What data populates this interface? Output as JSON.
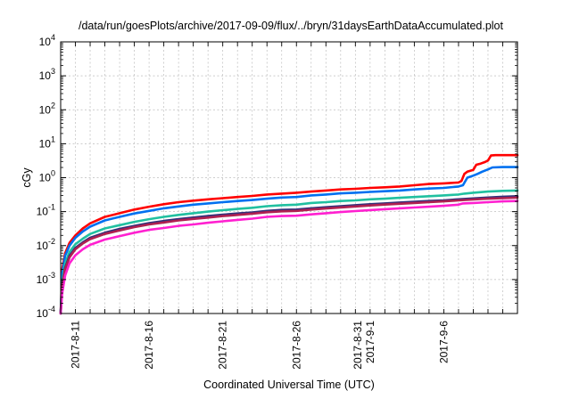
{
  "chart_data": {
    "type": "line",
    "title": "/data/run/goesPlots/archive/2017-09-09/flux/../bryn/31daysEarthDataAccumulated.plot",
    "xlabel": "Coordinated Universal Time (UTC)",
    "ylabel": "cGy",
    "yscale": "log",
    "ylim": [
      0.0001,
      10000
    ],
    "xlim": [
      0,
      31
    ],
    "grid": true,
    "legend": "none",
    "y_ticks": [
      {
        "value": 0.0001,
        "base": "10",
        "exp": "-4"
      },
      {
        "value": 0.001,
        "base": "10",
        "exp": "-3"
      },
      {
        "value": 0.01,
        "base": "10",
        "exp": "-2"
      },
      {
        "value": 0.1,
        "base": "10",
        "exp": "-1"
      },
      {
        "value": 1,
        "base": "10",
        "exp": "0"
      },
      {
        "value": 10,
        "base": "10",
        "exp": "1"
      },
      {
        "value": 100,
        "base": "10",
        "exp": "2"
      },
      {
        "value": 1000,
        "base": "10",
        "exp": "3"
      },
      {
        "value": 10000,
        "base": "10",
        "exp": "4"
      }
    ],
    "x_ticks": [
      {
        "x": 1,
        "lines": [
          "2017-8-11"
        ]
      },
      {
        "x": 6,
        "lines": [
          "2017-8-16"
        ]
      },
      {
        "x": 11,
        "lines": [
          "2017-8-21"
        ]
      },
      {
        "x": 16,
        "lines": [
          "2017-8-26"
        ]
      },
      {
        "x": 21,
        "lines": [
          "2017-8-31",
          "2017-9-1"
        ]
      },
      {
        "x": 26,
        "lines": [
          "2017-9-6"
        ]
      }
    ],
    "series": [
      {
        "color": "#ff0000",
        "points": [
          [
            0,
            0.0001
          ],
          [
            0.1,
            0.002
          ],
          [
            0.3,
            0.006
          ],
          [
            0.6,
            0.012
          ],
          [
            1,
            0.02
          ],
          [
            1.5,
            0.032
          ],
          [
            2,
            0.045
          ],
          [
            3,
            0.07
          ],
          [
            4,
            0.09
          ],
          [
            5,
            0.115
          ],
          [
            6,
            0.14
          ],
          [
            7,
            0.165
          ],
          [
            8,
            0.19
          ],
          [
            9,
            0.21
          ],
          [
            10,
            0.23
          ],
          [
            11,
            0.25
          ],
          [
            12,
            0.27
          ],
          [
            13,
            0.29
          ],
          [
            14,
            0.32
          ],
          [
            15,
            0.34
          ],
          [
            15.5,
            0.35
          ],
          [
            16,
            0.36
          ],
          [
            17,
            0.39
          ],
          [
            18,
            0.42
          ],
          [
            19,
            0.45
          ],
          [
            20,
            0.47
          ],
          [
            21,
            0.5
          ],
          [
            22,
            0.52
          ],
          [
            23,
            0.55
          ],
          [
            24,
            0.6
          ],
          [
            25,
            0.65
          ],
          [
            26,
            0.68
          ],
          [
            27,
            0.72
          ],
          [
            27.2,
            0.8
          ],
          [
            27.4,
            1.3
          ],
          [
            27.6,
            1.5
          ],
          [
            28,
            1.7
          ],
          [
            28.2,
            2.4
          ],
          [
            28.5,
            2.6
          ],
          [
            28.8,
            2.9
          ],
          [
            29,
            3.2
          ],
          [
            29.2,
            4.5
          ],
          [
            29.5,
            4.6
          ],
          [
            30,
            4.6
          ],
          [
            31,
            4.6
          ]
        ]
      },
      {
        "color": "#0070f0",
        "points": [
          [
            0,
            0.0001
          ],
          [
            0.1,
            0.0015
          ],
          [
            0.3,
            0.005
          ],
          [
            0.6,
            0.01
          ],
          [
            1,
            0.017
          ],
          [
            1.5,
            0.026
          ],
          [
            2,
            0.036
          ],
          [
            3,
            0.055
          ],
          [
            4,
            0.07
          ],
          [
            5,
            0.088
          ],
          [
            6,
            0.105
          ],
          [
            7,
            0.125
          ],
          [
            8,
            0.142
          ],
          [
            9,
            0.16
          ],
          [
            10,
            0.175
          ],
          [
            11,
            0.19
          ],
          [
            12,
            0.205
          ],
          [
            13,
            0.22
          ],
          [
            14,
            0.24
          ],
          [
            15,
            0.26
          ],
          [
            15.5,
            0.265
          ],
          [
            16,
            0.27
          ],
          [
            17,
            0.3
          ],
          [
            18,
            0.32
          ],
          [
            19,
            0.345
          ],
          [
            20,
            0.36
          ],
          [
            21,
            0.38
          ],
          [
            22,
            0.4
          ],
          [
            23,
            0.42
          ],
          [
            24,
            0.45
          ],
          [
            25,
            0.48
          ],
          [
            26,
            0.5
          ],
          [
            27,
            0.55
          ],
          [
            27.3,
            0.6
          ],
          [
            27.6,
            1.0
          ],
          [
            28,
            1.15
          ],
          [
            28.3,
            1.3
          ],
          [
            28.6,
            1.5
          ],
          [
            29,
            1.75
          ],
          [
            29.3,
            2.0
          ],
          [
            30,
            2.05
          ],
          [
            31,
            2.05
          ]
        ]
      },
      {
        "color": "#20c0a0",
        "points": [
          [
            0,
            0.0001
          ],
          [
            0.1,
            0.0009
          ],
          [
            0.3,
            0.003
          ],
          [
            0.6,
            0.0065
          ],
          [
            1,
            0.011
          ],
          [
            1.5,
            0.016
          ],
          [
            2,
            0.022
          ],
          [
            3,
            0.032
          ],
          [
            4,
            0.04
          ],
          [
            5,
            0.05
          ],
          [
            6,
            0.06
          ],
          [
            7,
            0.07
          ],
          [
            8,
            0.08
          ],
          [
            9,
            0.09
          ],
          [
            10,
            0.1
          ],
          [
            11,
            0.11
          ],
          [
            12,
            0.12
          ],
          [
            13,
            0.13
          ],
          [
            14,
            0.145
          ],
          [
            15,
            0.155
          ],
          [
            16,
            0.16
          ],
          [
            17,
            0.18
          ],
          [
            18,
            0.19
          ],
          [
            19,
            0.205
          ],
          [
            20,
            0.215
          ],
          [
            21,
            0.23
          ],
          [
            22,
            0.24
          ],
          [
            23,
            0.255
          ],
          [
            24,
            0.27
          ],
          [
            25,
            0.285
          ],
          [
            26,
            0.3
          ],
          [
            27,
            0.32
          ],
          [
            27.4,
            0.34
          ],
          [
            28,
            0.36
          ],
          [
            29,
            0.39
          ],
          [
            30,
            0.41
          ],
          [
            31,
            0.42
          ]
        ]
      },
      {
        "color": "#30307a",
        "points": [
          [
            0,
            0.0001
          ],
          [
            0.1,
            0.0007
          ],
          [
            0.3,
            0.0022
          ],
          [
            0.6,
            0.005
          ],
          [
            1,
            0.0085
          ],
          [
            1.5,
            0.0125
          ],
          [
            2,
            0.017
          ],
          [
            3,
            0.024
          ],
          [
            4,
            0.031
          ],
          [
            5,
            0.038
          ],
          [
            6,
            0.046
          ],
          [
            7,
            0.053
          ],
          [
            8,
            0.06
          ],
          [
            9,
            0.067
          ],
          [
            10,
            0.074
          ],
          [
            11,
            0.081
          ],
          [
            12,
            0.088
          ],
          [
            13,
            0.095
          ],
          [
            14,
            0.105
          ],
          [
            15,
            0.112
          ],
          [
            16,
            0.115
          ],
          [
            17,
            0.125
          ],
          [
            18,
            0.135
          ],
          [
            19,
            0.145
          ],
          [
            20,
            0.155
          ],
          [
            21,
            0.165
          ],
          [
            22,
            0.175
          ],
          [
            23,
            0.185
          ],
          [
            24,
            0.195
          ],
          [
            25,
            0.205
          ],
          [
            26,
            0.215
          ],
          [
            27,
            0.23
          ],
          [
            28,
            0.245
          ],
          [
            29,
            0.26
          ],
          [
            30,
            0.275
          ],
          [
            31,
            0.285
          ]
        ]
      },
      {
        "color": "#b02050",
        "points": [
          [
            0,
            0.0001
          ],
          [
            0.1,
            0.0006
          ],
          [
            0.3,
            0.002
          ],
          [
            0.6,
            0.0045
          ],
          [
            1,
            0.0078
          ],
          [
            1.5,
            0.0115
          ],
          [
            2,
            0.0155
          ],
          [
            3,
            0.022
          ],
          [
            4,
            0.028
          ],
          [
            5,
            0.035
          ],
          [
            6,
            0.042
          ],
          [
            7,
            0.048
          ],
          [
            8,
            0.055
          ],
          [
            9,
            0.061
          ],
          [
            10,
            0.067
          ],
          [
            11,
            0.074
          ],
          [
            12,
            0.08
          ],
          [
            13,
            0.087
          ],
          [
            14,
            0.096
          ],
          [
            15,
            0.102
          ],
          [
            16,
            0.105
          ],
          [
            17,
            0.115
          ],
          [
            18,
            0.124
          ],
          [
            19,
            0.133
          ],
          [
            20,
            0.142
          ],
          [
            21,
            0.152
          ],
          [
            22,
            0.161
          ],
          [
            23,
            0.17
          ],
          [
            24,
            0.18
          ],
          [
            25,
            0.19
          ],
          [
            26,
            0.2
          ],
          [
            27,
            0.215
          ],
          [
            28,
            0.228
          ],
          [
            29,
            0.24
          ],
          [
            30,
            0.25
          ],
          [
            31,
            0.26
          ]
        ]
      },
      {
        "color": "#ff20d0",
        "points": [
          [
            0,
            0.0001
          ],
          [
            0.1,
            0.0004
          ],
          [
            0.3,
            0.0013
          ],
          [
            0.6,
            0.003
          ],
          [
            1,
            0.0052
          ],
          [
            1.5,
            0.0078
          ],
          [
            2,
            0.0105
          ],
          [
            3,
            0.015
          ],
          [
            4,
            0.019
          ],
          [
            5,
            0.024
          ],
          [
            6,
            0.029
          ],
          [
            7,
            0.033
          ],
          [
            8,
            0.038
          ],
          [
            9,
            0.042
          ],
          [
            10,
            0.047
          ],
          [
            11,
            0.052
          ],
          [
            12,
            0.057
          ],
          [
            13,
            0.062
          ],
          [
            14,
            0.07
          ],
          [
            15,
            0.074
          ],
          [
            16,
            0.076
          ],
          [
            17,
            0.083
          ],
          [
            18,
            0.09
          ],
          [
            19,
            0.097
          ],
          [
            20,
            0.104
          ],
          [
            21,
            0.111
          ],
          [
            22,
            0.118
          ],
          [
            23,
            0.125
          ],
          [
            24,
            0.132
          ],
          [
            25,
            0.14
          ],
          [
            26,
            0.148
          ],
          [
            27,
            0.16
          ],
          [
            27.3,
            0.175
          ],
          [
            28,
            0.18
          ],
          [
            29,
            0.19
          ],
          [
            30,
            0.2
          ],
          [
            31,
            0.205
          ]
        ]
      }
    ]
  }
}
